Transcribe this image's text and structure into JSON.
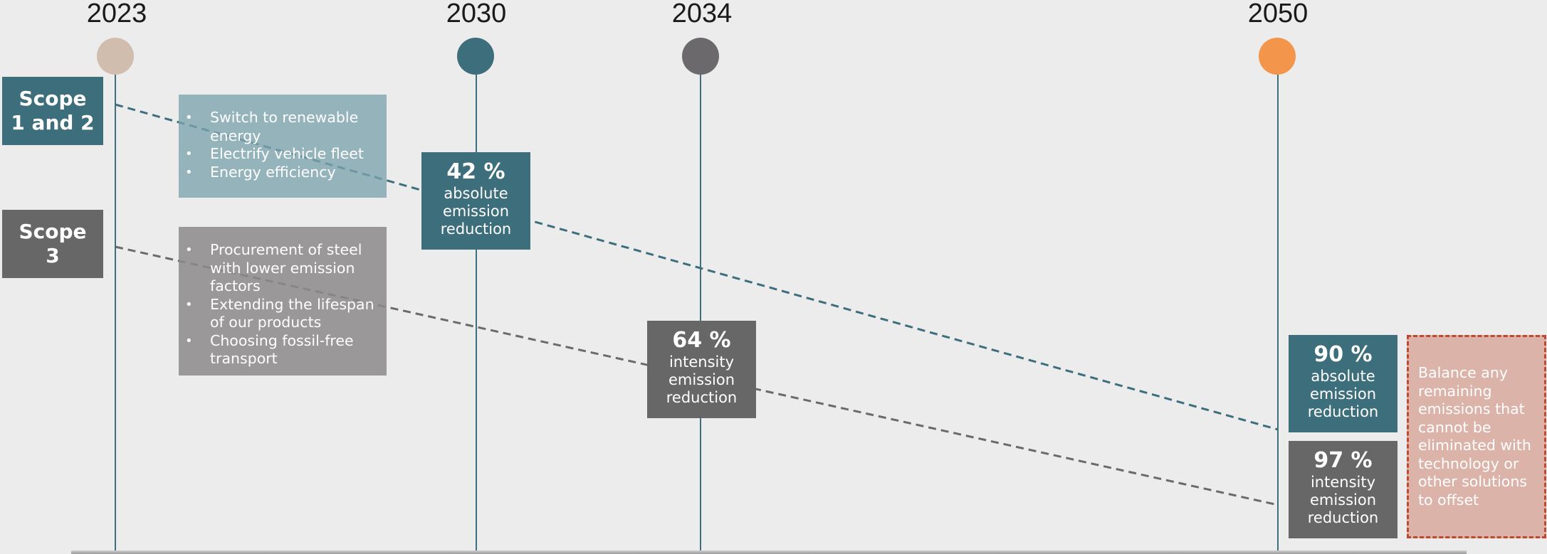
{
  "timeline": {
    "years": [
      {
        "label": "2023",
        "color": "#d1bdae"
      },
      {
        "label": "2030",
        "color": "#3d6e7c"
      },
      {
        "label": "2034",
        "color": "#6b696b"
      },
      {
        "label": "2050",
        "color": "#f3954a"
      }
    ]
  },
  "scopes": {
    "scope12": {
      "label_line1": "Scope",
      "label_line2": "1 and 2",
      "color": "#3d6e7c"
    },
    "scope3": {
      "label_line1": "Scope",
      "label_line2": "3",
      "color": "#686767"
    }
  },
  "actions": {
    "scope12": [
      "Switch to renewable energy",
      "Electrify vehicle fleet",
      "Energy efficiency"
    ],
    "scope3": [
      "Procurement of steel with lower emission factors",
      "Extending the lifespan of our products",
      "Choosing fossil-free transport"
    ]
  },
  "targets": {
    "t2030": {
      "pct": "42 %",
      "line1": "absolute",
      "line2": "emission",
      "line3": "reduction"
    },
    "t2034": {
      "pct": "64 %",
      "line1": "intensity",
      "line2": "emission",
      "line3": "reduction"
    },
    "t2050a": {
      "pct": "90 %",
      "line1": "absolute",
      "line2": "emission",
      "line3": "reduction"
    },
    "t2050b": {
      "pct": "97 %",
      "line1": "intensity",
      "line2": "emission",
      "line3": "reduction"
    }
  },
  "offset": {
    "text": "Balance any remaining emissions that cannot be eliminated with technology or other solutions to offset"
  }
}
